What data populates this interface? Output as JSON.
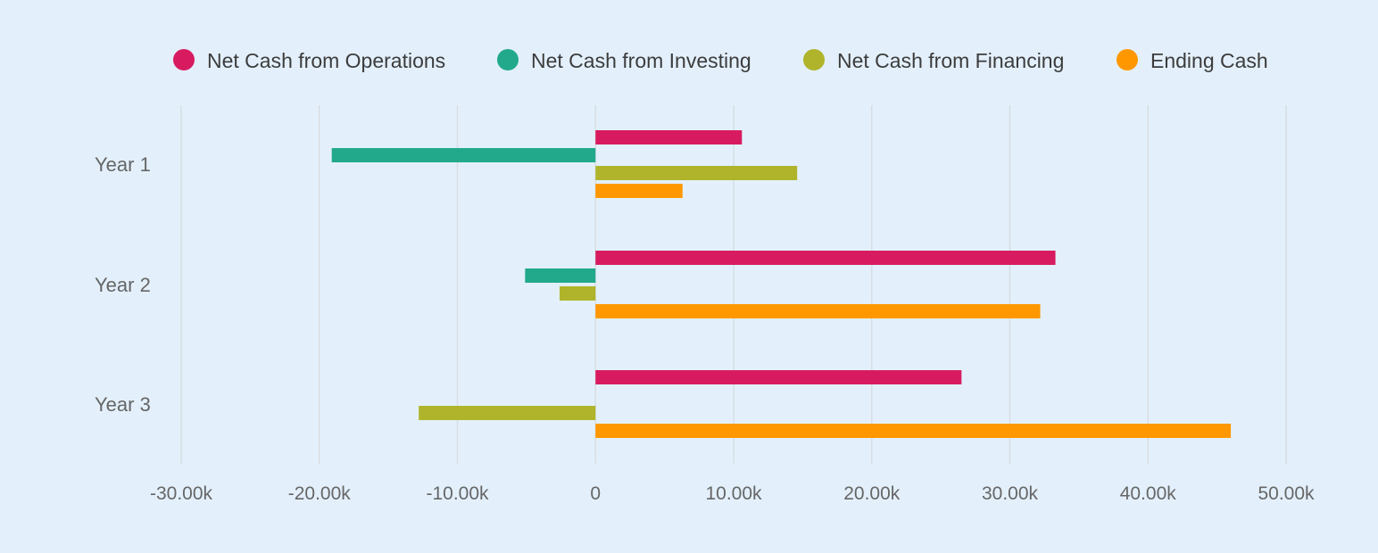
{
  "chart_data": {
    "type": "bar",
    "orientation": "horizontal",
    "categories": [
      "Year 1",
      "Year 2",
      "Year 3"
    ],
    "series": [
      {
        "name": "Net Cash from Operations",
        "color": "#d81b60",
        "values": [
          10600,
          33300,
          26500
        ]
      },
      {
        "name": "Net Cash from Investing",
        "color": "#22a98c",
        "values": [
          -19100,
          -5100,
          0
        ]
      },
      {
        "name": "Net Cash from Financing",
        "color": "#afb42b",
        "values": [
          14600,
          -2600,
          -12800
        ]
      },
      {
        "name": "Ending Cash",
        "color": "#ff9800",
        "values": [
          6300,
          32200,
          46000
        ]
      }
    ],
    "xlim": [
      -30000,
      50000
    ],
    "x_ticks": [
      -30000,
      -20000,
      -10000,
      0,
      10000,
      20000,
      30000,
      40000,
      50000
    ],
    "x_tick_labels": [
      "-30.00k",
      "-20.00k",
      "-10.00k",
      "0",
      "10.00k",
      "20.00k",
      "30.00k",
      "40.00k",
      "50.00k"
    ],
    "grid": true,
    "legend_position": "top",
    "background": "#e3f0fc"
  }
}
